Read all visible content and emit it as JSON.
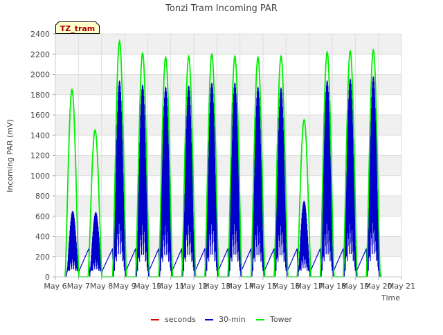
{
  "chart_data": {
    "type": "line",
    "title": "Tonzi Tram Incoming PAR",
    "xlabel": "Time",
    "ylabel": "Incoming PAR (mV)",
    "badge": "TZ_tram",
    "xlim": [
      6,
      21
    ],
    "ylim": [
      0,
      2400
    ],
    "x_ticks": [
      6,
      7,
      8,
      9,
      10,
      11,
      12,
      13,
      14,
      15,
      16,
      17,
      18,
      19,
      20,
      21
    ],
    "x_tick_labels": [
      "May 6",
      "May 7",
      "May 8",
      "May 9",
      "May 10",
      "May 11",
      "May 12",
      "May 13",
      "May 14",
      "May 15",
      "May 16",
      "May 17",
      "May 18",
      "May 19",
      "May 20",
      "May 21"
    ],
    "y_ticks": [
      0,
      200,
      400,
      600,
      800,
      1000,
      1200,
      1400,
      1600,
      1800,
      2000,
      2200,
      2400
    ],
    "grid": true,
    "legend_position": "bottom",
    "series": [
      {
        "name": "seconds",
        "color": "#dd0000",
        "values": []
      },
      {
        "name": "30-min",
        "color": "#0000cc",
        "day_peaks": [
          {
            "day": 6.75,
            "peak": 650
          },
          {
            "day": 7.75,
            "peak": 640
          },
          {
            "day": 8.78,
            "peak": 1940
          },
          {
            "day": 9.78,
            "peak": 1900
          },
          {
            "day": 10.78,
            "peak": 1880
          },
          {
            "day": 11.78,
            "peak": 1890
          },
          {
            "day": 12.78,
            "peak": 1920
          },
          {
            "day": 13.78,
            "peak": 1920
          },
          {
            "day": 14.78,
            "peak": 1880
          },
          {
            "day": 15.78,
            "peak": 1870
          },
          {
            "day": 16.78,
            "peak": 750
          },
          {
            "day": 17.78,
            "peak": 1940
          },
          {
            "day": 18.78,
            "peak": 1960
          },
          {
            "day": 19.78,
            "peak": 1980
          }
        ]
      },
      {
        "name": "Tower",
        "color": "#00ee00",
        "day_peaks": [
          {
            "day": 6.72,
            "peak": 1850
          },
          {
            "day": 7.72,
            "peak": 1450
          },
          {
            "day": 8.78,
            "peak": 2330
          },
          {
            "day": 9.78,
            "peak": 2210
          },
          {
            "day": 10.78,
            "peak": 2170
          },
          {
            "day": 11.78,
            "peak": 2180
          },
          {
            "day": 12.78,
            "peak": 2200
          },
          {
            "day": 13.78,
            "peak": 2180
          },
          {
            "day": 14.78,
            "peak": 2170
          },
          {
            "day": 15.78,
            "peak": 2180
          },
          {
            "day": 16.78,
            "peak": 1550
          },
          {
            "day": 17.78,
            "peak": 2220
          },
          {
            "day": 18.78,
            "peak": 2230
          },
          {
            "day": 19.78,
            "peak": 2240
          }
        ]
      }
    ]
  }
}
